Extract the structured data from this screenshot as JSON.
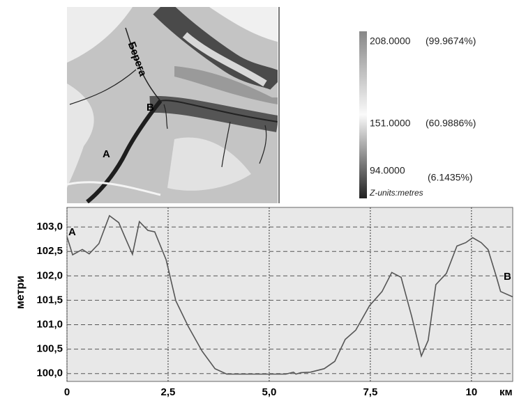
{
  "map": {
    "river_label": "Берега",
    "point_a": "A",
    "point_b": "B"
  },
  "legend": {
    "max": "208.0000",
    "max_pct": "(99.9674%)",
    "mid": "151.0000",
    "mid_pct": "(60.9886%)",
    "min": "94.0000",
    "min_pct": "(6.1435%)",
    "units": "Z-units:metres"
  },
  "chart_data": {
    "type": "line",
    "y_label": "метри",
    "x_unit": "км",
    "annotations": [
      "A",
      "B"
    ],
    "x": [
      0,
      0.14,
      0.38,
      0.55,
      0.79,
      1.05,
      1.28,
      1.45,
      1.62,
      1.79,
      2.0,
      2.17,
      2.45,
      2.69,
      3.0,
      3.34,
      3.66,
      3.95,
      4.9,
      5.41,
      5.6,
      5.66,
      5.78,
      6.02,
      6.36,
      6.62,
      6.88,
      7.14,
      7.48,
      7.79,
      8.03,
      8.26,
      8.52,
      8.76,
      8.93,
      9.12,
      9.38,
      9.64,
      9.86,
      10.03,
      10.24,
      10.41,
      10.62,
      10.72,
      11.02
    ],
    "values": [
      102.8,
      102.43,
      102.54,
      102.45,
      102.66,
      103.23,
      103.09,
      102.76,
      102.44,
      103.11,
      102.93,
      102.9,
      102.33,
      101.49,
      100.96,
      100.46,
      100.1,
      99.99,
      99.99,
      99.99,
      100.03,
      99.99,
      100.02,
      100.03,
      100.1,
      100.25,
      100.7,
      100.89,
      101.39,
      101.68,
      102.07,
      101.97,
      101.18,
      100.36,
      100.68,
      101.82,
      102.05,
      102.61,
      102.68,
      102.78,
      102.68,
      102.54,
      101.97,
      101.68,
      101.57
    ],
    "color": "#555555",
    "xlim": [
      0,
      11.02
    ],
    "ylim": [
      99.84,
      103.4
    ],
    "xticks": [
      0,
      {
        "value": 2.5,
        "label": "2,5"
      },
      {
        "value": 5,
        "label": "5,0"
      },
      {
        "value": 7.5,
        "label": "7,5"
      },
      10
    ],
    "yticks": [
      {
        "value": 100,
        "label": "100,0"
      },
      {
        "value": 100.5,
        "label": "100,5"
      },
      {
        "value": 101,
        "label": "101,0"
      },
      {
        "value": 101.5,
        "label": "101,5"
      },
      {
        "value": 102,
        "label": "102,0"
      },
      {
        "value": 102.5,
        "label": "102,5"
      },
      {
        "value": 103,
        "label": "103,0"
      }
    ],
    "grid": true
  }
}
